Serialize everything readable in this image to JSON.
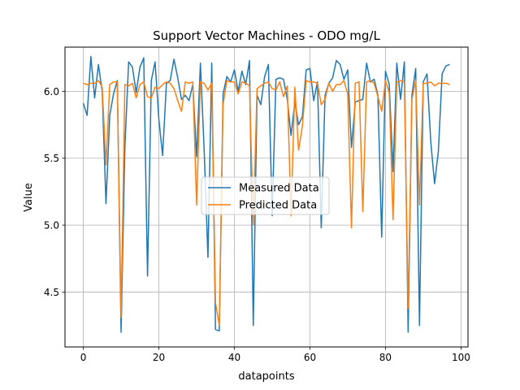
{
  "chart_data": {
    "type": "line",
    "title": "Support Vector Machines - ODO mg/L",
    "xlabel": "datapoints",
    "ylabel": "Value",
    "xlim": [
      -4.85,
      101.85
    ],
    "ylim": [
      4.09,
      6.33
    ],
    "xticks": [
      0,
      20,
      40,
      60,
      80,
      100
    ],
    "yticks": [
      4.5,
      5.0,
      5.5,
      6.0
    ],
    "ytick_labels": [
      "4.5",
      "5.0",
      "5.5",
      "6.0"
    ],
    "grid": true,
    "legend_position": "center",
    "series": [
      {
        "name": "Measured Data",
        "color": "#1f77b4",
        "values": [
          5.91,
          5.82,
          6.26,
          5.95,
          6.2,
          6.0,
          5.16,
          5.82,
          5.98,
          6.08,
          4.2,
          5.58,
          6.22,
          6.18,
          5.99,
          6.18,
          6.25,
          4.62,
          6.08,
          6.22,
          5.79,
          5.52,
          6.06,
          6.08,
          6.24,
          6.1,
          5.94,
          5.97,
          5.93,
          6.05,
          5.51,
          6.21,
          5.56,
          4.76,
          6.21,
          4.22,
          4.21,
          5.98,
          6.11,
          6.07,
          6.16,
          6.0,
          6.15,
          6.05,
          6.23,
          4.25,
          5.97,
          5.9,
          6.11,
          6.2,
          5.07,
          6.09,
          6.1,
          6.09,
          5.94,
          5.67,
          5.92,
          5.75,
          5.81,
          6.16,
          6.17,
          5.93,
          6.07,
          4.98,
          5.97,
          6.06,
          6.1,
          6.23,
          6.2,
          6.09,
          6.16,
          5.58,
          5.92,
          5.93,
          5.94,
          6.21,
          6.07,
          6.09,
          5.97,
          4.91,
          6.15,
          6.05,
          5.4,
          6.21,
          5.94,
          6.22,
          4.2,
          5.97,
          6.17,
          4.25,
          6.07,
          6.13,
          5.62,
          5.31,
          5.55,
          6.13,
          6.19,
          6.2
        ]
      },
      {
        "name": "Predicted Data",
        "color": "#ff7f0e",
        "values": [
          6.06,
          6.05,
          6.06,
          6.06,
          6.08,
          6.03,
          5.45,
          6.05,
          6.07,
          6.07,
          4.31,
          6.05,
          6.04,
          6.06,
          5.95,
          6.05,
          6.07,
          5.96,
          5.95,
          6.03,
          6.02,
          6.05,
          6.07,
          6.06,
          6.02,
          5.93,
          5.85,
          6.07,
          6.06,
          6.07,
          5.15,
          6.07,
          6.06,
          6.01,
          6.06,
          4.42,
          4.25,
          5.9,
          6.08,
          6.07,
          6.07,
          5.98,
          6.07,
          6.06,
          6.04,
          5.0,
          6.02,
          6.04,
          6.06,
          6.07,
          6.02,
          6.01,
          6.07,
          5.96,
          6.04,
          5.07,
          6.03,
          5.56,
          5.74,
          6.08,
          6.07,
          6.07,
          6.06,
          5.9,
          5.94,
          6.06,
          6.0,
          6.05,
          6.05,
          6.08,
          5.98,
          4.98,
          6.06,
          6.07,
          5.1,
          6.07,
          6.08,
          6.06,
          5.96,
          5.85,
          6.08,
          5.99,
          5.04,
          6.07,
          6.08,
          6.07,
          4.38,
          5.94,
          6.08,
          5.15,
          6.06,
          6.06,
          6.07,
          6.04,
          6.06,
          6.06,
          6.06,
          6.05
        ]
      }
    ]
  }
}
